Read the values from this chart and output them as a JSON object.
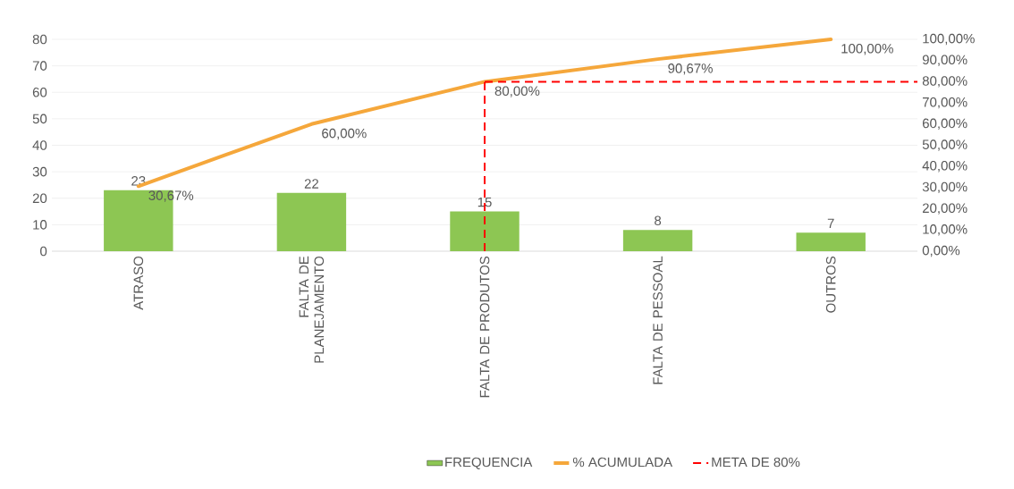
{
  "chart_data": {
    "type": "bar",
    "categories": [
      "ATRASO",
      "FALTA DE PLANEJAMENTO",
      "FALTA DE PRODUTOS",
      "FALTA DE PESSOAL",
      "OUTROS"
    ],
    "series": [
      {
        "name": "FREQUENCIA",
        "color": "#8dc653",
        "values": [
          23,
          22,
          15,
          8,
          7
        ],
        "value_labels": [
          "23",
          "22",
          "15",
          "8",
          "7"
        ]
      },
      {
        "name": "% ACUMULADA",
        "type": "line",
        "axis": "y2",
        "color": "#f5a73b",
        "values": [
          30.67,
          60,
          80,
          90.67,
          100
        ],
        "value_labels": [
          "30,67%",
          "60,00%",
          "80,00%",
          "90,67%",
          "100,00%"
        ]
      }
    ],
    "ylim": [
      0,
      80
    ],
    "yticks": [
      0,
      10,
      20,
      30,
      40,
      50,
      60,
      70,
      80
    ],
    "y2lim": [
      0,
      100
    ],
    "y2ticks": [
      {
        "value": 0,
        "label": "0,00%"
      },
      {
        "value": 10,
        "label": "10,00%"
      },
      {
        "value": 20,
        "label": "20,00%"
      },
      {
        "value": 30,
        "label": "30,00%"
      },
      {
        "value": 40,
        "label": "40,00%"
      },
      {
        "value": 50,
        "label": "50,00%"
      },
      {
        "value": 60,
        "label": "60,00%"
      },
      {
        "value": 70,
        "label": "70,00%"
      },
      {
        "value": 80,
        "label": "80,00%"
      },
      {
        "value": 90,
        "label": "90,00%"
      },
      {
        "value": 100,
        "label": "100,00%"
      }
    ],
    "grid": "y",
    "legend": "bottom",
    "ref_lines": [
      {
        "axis": "y2",
        "value": 80,
        "label": "META DE 80%",
        "color": "#ff0000",
        "line_style": "dashed"
      },
      {
        "axis": "x",
        "value": "FALTA DE PRODUTOS",
        "color": "#ff0000",
        "line_style": "dashed"
      }
    ]
  }
}
